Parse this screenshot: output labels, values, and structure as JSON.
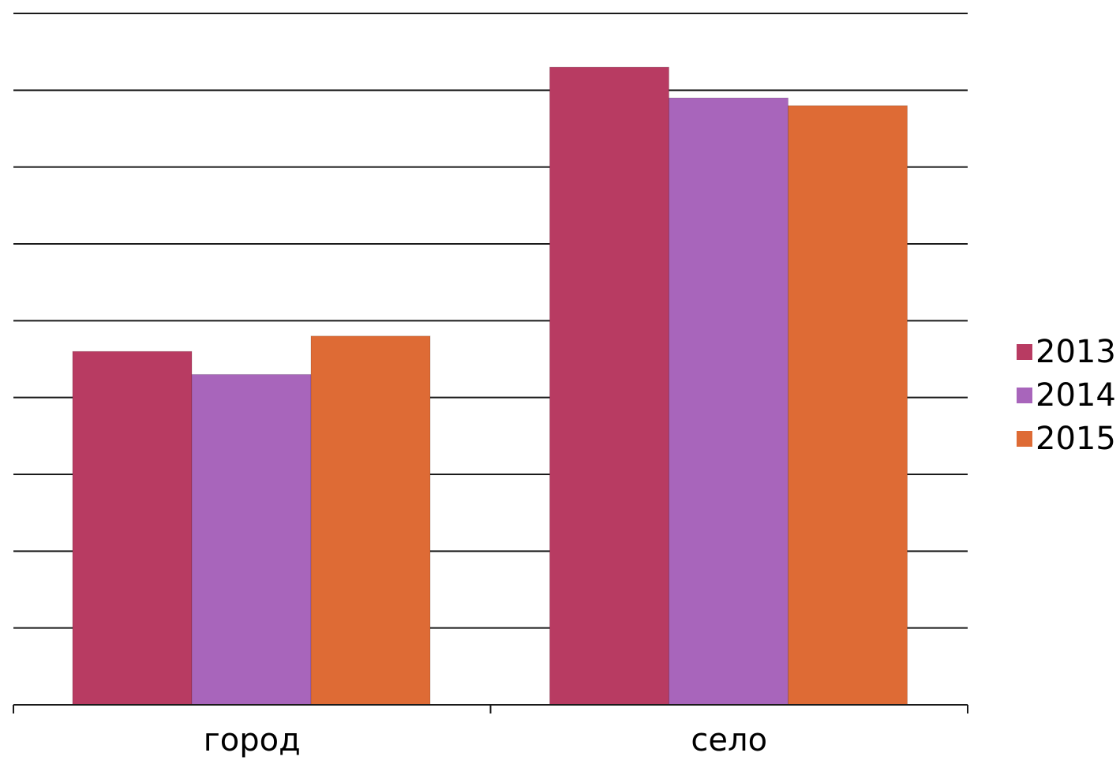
{
  "chart_data": {
    "type": "bar",
    "title": "",
    "xlabel": "",
    "ylabel": "",
    "categories": [
      "город",
      "село"
    ],
    "series": [
      {
        "name": "2013",
        "color": "#B83B62",
        "values": [
          4.6,
          8.3
        ]
      },
      {
        "name": "2014",
        "color": "#A865BB",
        "values": [
          4.3,
          7.9
        ]
      },
      {
        "name": "2015",
        "color": "#DE6B35",
        "values": [
          4.8,
          7.8
        ]
      }
    ],
    "ylim": [
      0,
      9
    ],
    "y_ticks_shown": false,
    "grid": true,
    "legend": "right"
  }
}
